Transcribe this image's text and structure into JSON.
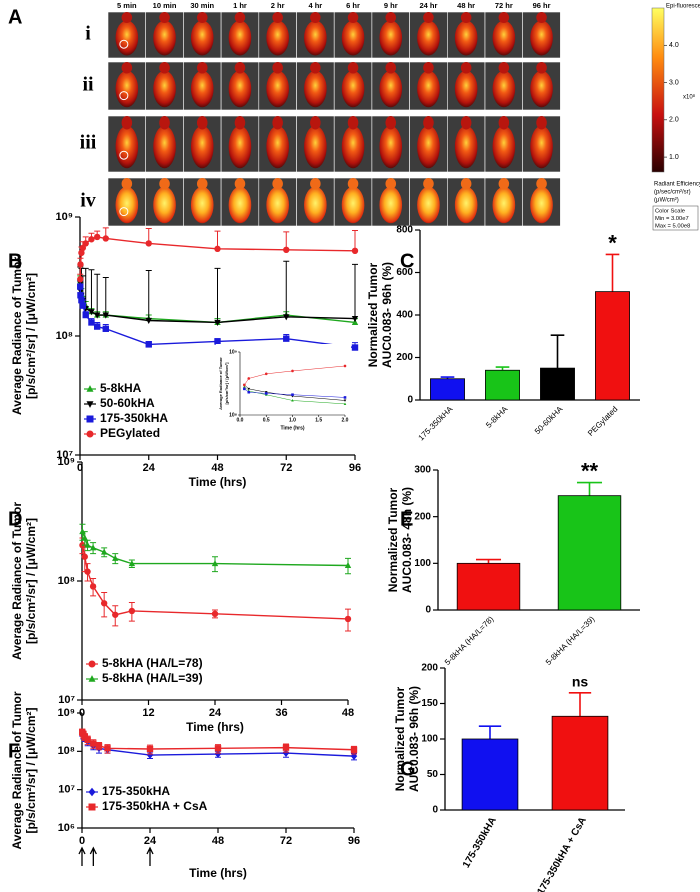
{
  "imaging": {
    "letter": "A",
    "columns": [
      "5 min",
      "10 min",
      "30 min",
      "1 hr",
      "2 hr",
      "4 hr",
      "6 hr",
      "9 hr",
      "24 hr",
      "48 hr",
      "72 hr",
      "96 hr"
    ],
    "rows": [
      "i",
      "ii",
      "iii",
      "iv"
    ],
    "colorbar": {
      "title": "Epi-fluorescence",
      "lim": [
        0.6,
        5.0
      ],
      "ticks": [
        {
          "value": 1,
          "label": "1.0"
        },
        {
          "value": 2,
          "label": "2.0"
        },
        {
          "value": 3,
          "label": "3.0"
        },
        {
          "value": 4,
          "label": "4.0"
        }
      ],
      "multiplier": "x10⁸",
      "units": [
        "Radiant Efficiency",
        "(p/sec/cm²/sr)",
        "(μW/cm²)"
      ],
      "scale_box": [
        "Color Scale",
        "Min = 3.00e7",
        "Max = 5.00e8"
      ]
    }
  },
  "chart_data": [
    {
      "type": "line",
      "letter": "B",
      "ylabel": [
        "Average Radiance of Tumor",
        "[p/s/cm²/sr] / [μW/cm²]"
      ],
      "xlabel": "Time (hrs)",
      "scale": "log",
      "ylim": [
        10000000.0,
        1000000000.0
      ],
      "yticks": [
        {
          "value": 10000000.0,
          "label": "10⁷"
        },
        {
          "value": 100000000.0,
          "label": "10⁸"
        },
        {
          "value": 1000000000.0,
          "label": "10⁹"
        }
      ],
      "xlim": [
        0,
        96
      ],
      "xticks": [
        0,
        24,
        48,
        72,
        96
      ],
      "x": [
        0.083,
        0.167,
        0.5,
        1,
        2,
        4,
        6,
        9,
        24,
        48,
        72,
        96
      ],
      "error_bars": "up",
      "legend": "lower left",
      "series": [
        {
          "name": "5-8kHA",
          "color": "#1fa81f",
          "marker": "triangle",
          "values": [
            300000000.0,
            260000000.0,
            230000000.0,
            200000000.0,
            180000000.0,
            160000000.0,
            150000000.0,
            150000000.0,
            140000000.0,
            130000000.0,
            150000000.0,
            130000000.0
          ],
          "errors": [
            20000000.0,
            20000000.0,
            20000000.0,
            15000000.0,
            15000000.0,
            10000000.0,
            10000000.0,
            10000000.0,
            10000000.0,
            10000000.0,
            10000000.0,
            10000000.0
          ]
        },
        {
          "name": "50-60kHA",
          "color": "#000000",
          "marker": "triangle-down",
          "values": [
            280000000.0,
            240000000.0,
            220000000.0,
            200000000.0,
            170000000.0,
            160000000.0,
            150000000.0,
            150000000.0,
            135000000.0,
            130000000.0,
            145000000.0,
            140000000.0
          ],
          "errors": [
            100000000.0,
            150000000.0,
            150000000.0,
            120000000.0,
            200000000.0,
            200000000.0,
            180000000.0,
            160000000.0,
            220000000.0,
            240000000.0,
            280000000.0,
            260000000.0
          ]
        },
        {
          "name": "175-350kHA",
          "color": "#1a1adb",
          "marker": "square",
          "values": [
            260000000.0,
            220000000.0,
            200000000.0,
            180000000.0,
            150000000.0,
            130000000.0,
            120000000.0,
            115000000.0,
            85000000.0,
            90000000.0,
            95000000.0,
            80000000.0
          ],
          "errors": [
            30000000.0,
            30000000.0,
            20000000.0,
            20000000.0,
            10000000.0,
            10000000.0,
            10000000.0,
            10000000.0,
            5000000.0,
            5000000.0,
            8000000.0,
            8000000.0
          ]
        },
        {
          "name": "PEGylated",
          "color": "#e8282b",
          "marker": "circle",
          "values": [
            300000000.0,
            400000000.0,
            500000000.0,
            550000000.0,
            600000000.0,
            650000000.0,
            680000000.0,
            660000000.0,
            600000000.0,
            540000000.0,
            530000000.0,
            520000000.0
          ],
          "errors": [
            30000000.0,
            50000000.0,
            60000000.0,
            70000000.0,
            80000000.0,
            80000000.0,
            80000000.0,
            150000000.0,
            200000000.0,
            220000000.0,
            220000000.0,
            250000000.0
          ]
        }
      ]
    },
    {
      "type": "line",
      "ylabel": [
        "Average Radiance of Tumor",
        "[p/s/cm²/sr] / [μW/cm²]"
      ],
      "xlabel": "Time (hrs)",
      "scale": "log",
      "ylim": [
        100000000.0,
        1000000000.0
      ],
      "yticks": [
        {
          "value": 100000000.0,
          "label": "10⁸"
        },
        {
          "value": 1000000000.0,
          "label": "10⁹"
        }
      ],
      "xlim": [
        0,
        2
      ],
      "xticks": [
        {
          "value": 0,
          "label": "0.0"
        },
        {
          "value": 0.5,
          "label": "0.5"
        },
        {
          "value": 1,
          "label": "1.0"
        },
        {
          "value": 1.5,
          "label": "1.5"
        },
        {
          "value": 2,
          "label": "2.0"
        }
      ],
      "x": [
        0.083,
        0.167,
        0.5,
        1,
        2
      ],
      "series": [
        {
          "color": "#1fa81f",
          "marker": "triangle",
          "values": [
            280000000.0,
            240000000.0,
            210000000.0,
            170000000.0,
            150000000.0
          ]
        },
        {
          "color": "#000000",
          "marker": "triangle-down",
          "values": [
            300000000.0,
            260000000.0,
            230000000.0,
            200000000.0,
            170000000.0
          ]
        },
        {
          "color": "#1a1adb",
          "marker": "square",
          "values": [
            260000000.0,
            230000000.0,
            220000000.0,
            210000000.0,
            190000000.0
          ]
        },
        {
          "color": "#e8282b",
          "marker": "circle",
          "values": [
            300000000.0,
            380000000.0,
            450000000.0,
            500000000.0,
            600000000.0
          ]
        }
      ]
    },
    {
      "type": "bar",
      "letter": "C",
      "ylabel": [
        "Normalized Tumor",
        "AUC0.083- 96h (%)"
      ],
      "categories": [
        "175-350kHA",
        "5-8kHA",
        "50-60kHA",
        "PEGylated"
      ],
      "values": [
        100,
        140,
        150,
        510
      ],
      "errors": [
        8,
        15,
        155,
        175
      ],
      "colors": [
        "#1010f0",
        "#18c418",
        "#000000",
        "#f01010"
      ],
      "ylim": [
        0,
        800
      ],
      "yticks": [
        0,
        200,
        400,
        600,
        800
      ],
      "annotation": {
        "text": "*",
        "category": "PEGylated"
      }
    },
    {
      "type": "line",
      "letter": "D",
      "ylabel": [
        "Average Radiance of Tumor",
        "[p/s/cm²/sr] / [μW/cm²]"
      ],
      "xlabel": "Time (hrs)",
      "scale": "log",
      "ylim": [
        10000000.0,
        1000000000.0
      ],
      "yticks": [
        {
          "value": 10000000.0,
          "label": "10⁷"
        },
        {
          "value": 100000000.0,
          "label": "10⁸"
        },
        {
          "value": 1000000000.0,
          "label": "10⁹"
        }
      ],
      "xlim": [
        0,
        48
      ],
      "xticks": [
        0,
        12,
        24,
        36,
        48
      ],
      "x": [
        0.083,
        0.5,
        1,
        2,
        4,
        6,
        9,
        24,
        48
      ],
      "error_bars": "both",
      "legend": "lower left",
      "series": [
        {
          "name": "5-8kHA (HA/L=78)",
          "color": "#e8282b",
          "marker": "circle",
          "values": [
            200000000.0,
            160000000.0,
            120000000.0,
            90000000.0,
            65000000.0,
            52000000.0,
            56000000.0,
            53000000.0,
            48000000.0
          ],
          "errors": [
            30000000.0,
            40000000.0,
            20000000.0,
            15000000.0,
            15000000.0,
            10000000.0,
            10000000.0,
            4000000.0,
            10000000.0
          ]
        },
        {
          "name": "5-8kHA (HA/L=39)",
          "color": "#1fa81f",
          "marker": "triangle",
          "values": [
            260000000.0,
            230000000.0,
            200000000.0,
            190000000.0,
            175000000.0,
            155000000.0,
            140000000.0,
            140000000.0,
            135000000.0
          ],
          "errors": [
            40000000.0,
            30000000.0,
            20000000.0,
            20000000.0,
            15000000.0,
            15000000.0,
            10000000.0,
            20000000.0,
            20000000.0
          ]
        }
      ]
    },
    {
      "type": "bar",
      "letter": "E",
      "ylabel": [
        "Normalized Tumor",
        "AUC0.083- 48h (%)"
      ],
      "categories": [
        "5-8kHA (HA/L=78)",
        "5-8kHA (HA/L=39)"
      ],
      "values": [
        100,
        245
      ],
      "errors": [
        8,
        28
      ],
      "colors": [
        "#f01010",
        "#18c418"
      ],
      "ylim": [
        0,
        300
      ],
      "yticks": [
        0,
        100,
        200,
        300
      ],
      "annotation": {
        "text": "**",
        "category": "5-8kHA (HA/L=39)"
      }
    },
    {
      "type": "line",
      "letter": "F",
      "ylabel": [
        "Average Radiance of Tumor",
        "[p/s/cm²/sr] / [μW/cm²]"
      ],
      "xlabel": "Time (hrs)",
      "scale": "log",
      "ylim": [
        1000000.0,
        1000000000.0
      ],
      "yticks": [
        {
          "value": 1000000.0,
          "label": "10⁶"
        },
        {
          "value": 10000000.0,
          "label": "10⁷"
        },
        {
          "value": 100000000.0,
          "label": "10⁸"
        },
        {
          "value": 1000000000.0,
          "label": "10⁹"
        }
      ],
      "xlim": [
        0,
        96
      ],
      "xticks": [
        0,
        24,
        48,
        72,
        96
      ],
      "x": [
        0.083,
        0.5,
        1,
        2,
        4,
        6,
        9,
        24,
        48,
        72,
        96
      ],
      "error_bars": "both",
      "legend": "lower left",
      "dose_times": [
        0,
        4,
        24
      ],
      "series": [
        {
          "name": "175-350kHA",
          "color": "#1a1adb",
          "marker": "diamond",
          "values": [
            300000000.0,
            260000000.0,
            220000000.0,
            180000000.0,
            140000000.0,
            120000000.0,
            110000000.0,
            80000000.0,
            85000000.0,
            90000000.0,
            75000000.0
          ],
          "errors": [
            50000000.0,
            50000000.0,
            40000000.0,
            40000000.0,
            30000000.0,
            30000000.0,
            20000000.0,
            15000000.0,
            15000000.0,
            20000000.0,
            15000000.0
          ]
        },
        {
          "name": "175-350kHA + CsA",
          "color": "#e8282b",
          "marker": "square",
          "values": [
            320000000.0,
            280000000.0,
            240000000.0,
            200000000.0,
            160000000.0,
            140000000.0,
            120000000.0,
            115000000.0,
            120000000.0,
            125000000.0,
            110000000.0
          ],
          "errors": [
            60000000.0,
            60000000.0,
            50000000.0,
            50000000.0,
            40000000.0,
            30000000.0,
            30000000.0,
            30000000.0,
            30000000.0,
            30000000.0,
            25000000.0
          ]
        }
      ]
    },
    {
      "type": "bar",
      "letter": "G",
      "ylabel": [
        "Normalized Tumor",
        "AUC0.083- 96h (%)"
      ],
      "categories": [
        "175-350kHA",
        "175-350kHA + CsA"
      ],
      "values": [
        100,
        132
      ],
      "errors": [
        18,
        33
      ],
      "colors": [
        "#1010f0",
        "#f01010"
      ],
      "ylim": [
        0,
        200
      ],
      "yticks": [
        0,
        50,
        100,
        150,
        200
      ],
      "annotation": {
        "text": "ns",
        "category": "175-350kHA + CsA"
      }
    }
  ]
}
